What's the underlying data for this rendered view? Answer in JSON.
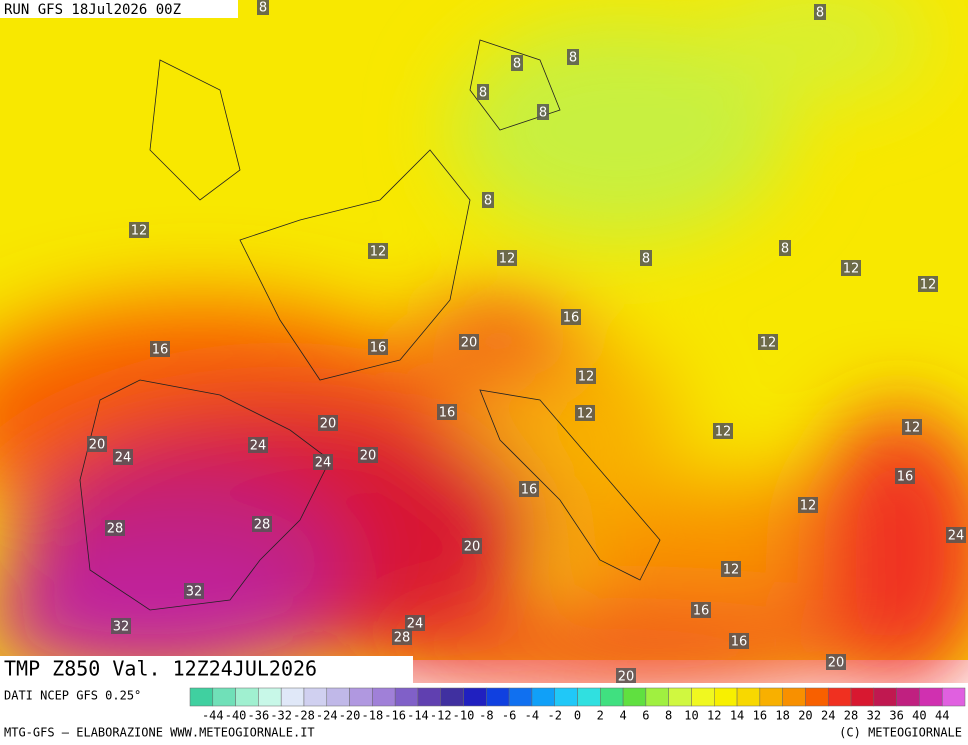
{
  "header": {
    "run": "RUN GFS 18Jul2026 00Z"
  },
  "map": {
    "field_label": "TMP Z850 Val. 12Z24JUL2026",
    "contour_labels": [
      8,
      8,
      8,
      8,
      8,
      8,
      8,
      12,
      12,
      12,
      8,
      8,
      12,
      12,
      16,
      16,
      16,
      20,
      12,
      12,
      16,
      12,
      20,
      12,
      12,
      20,
      24,
      24,
      24,
      20,
      16,
      16,
      12,
      28,
      28,
      20,
      24,
      12,
      32,
      16,
      32,
      24,
      28,
      16,
      20,
      20
    ]
  },
  "footer": {
    "source": "DATI NCEP GFS 0.25°",
    "credit": "MTG-GFS — ELABORAZIONE WWW.METEOGIORNALE.IT",
    "copyright": "(C) METEOGIORNALE",
    "scale_labels": [
      -44,
      -40,
      -36,
      -32,
      -28,
      -24,
      -20,
      -18,
      -16,
      -14,
      -12,
      -10,
      -8,
      -6,
      -4,
      -2,
      0,
      2,
      4,
      6,
      8,
      10,
      12,
      14,
      16,
      18,
      20,
      24,
      28,
      32,
      36,
      40,
      44
    ],
    "scale_colors": [
      "#40d0a0",
      "#70e0b8",
      "#a0f0d0",
      "#c8f8e8",
      "#e0e8f8",
      "#d0d0f0",
      "#c0b8e8",
      "#b098e0",
      "#a080d8",
      "#8060c8",
      "#6040b0",
      "#4030a0",
      "#2020c0",
      "#1040e0",
      "#1070f0",
      "#10a0f8",
      "#20c8f8",
      "#30e0e0",
      "#40e080",
      "#60e040",
      "#a0f040",
      "#d0f840",
      "#f0f820",
      "#f8f000",
      "#f8d800",
      "#f8b000",
      "#f89000",
      "#f86000",
      "#f03020",
      "#d81830",
      "#c01850",
      "#c02080",
      "#d030b0",
      "#e060e0"
    ]
  }
}
